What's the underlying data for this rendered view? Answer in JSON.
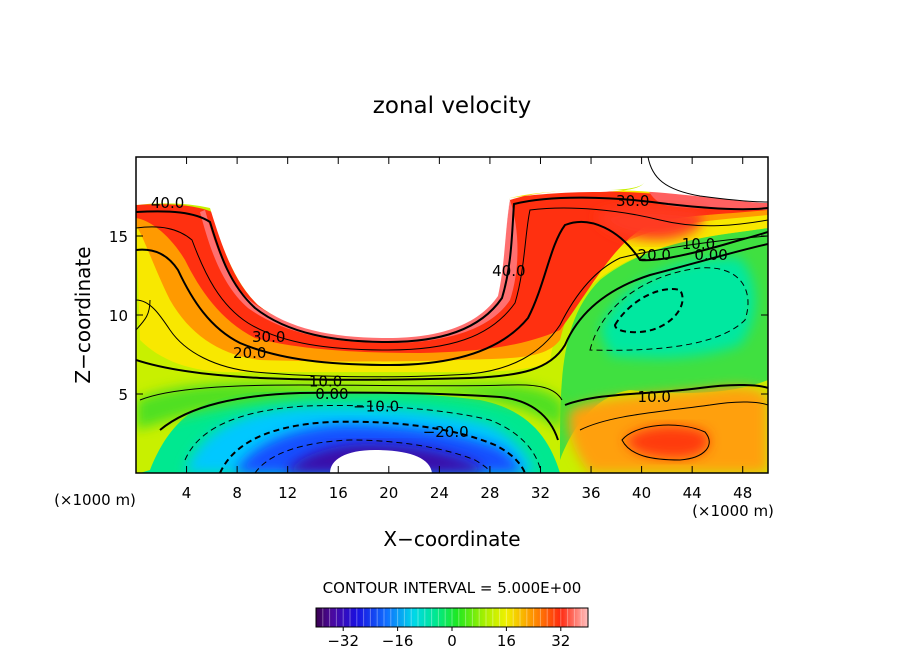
{
  "chart_data": {
    "type": "heatmap",
    "title": "zonal velocity",
    "xlabel": "X−coordinate",
    "ylabel": "Z−coordinate",
    "x_unit_left": "(×1000 m)",
    "x_unit_right": "(×1000 m)",
    "xlim": [
      0,
      50
    ],
    "ylim": [
      0,
      20
    ],
    "x_ticks": [
      4,
      8,
      12,
      16,
      20,
      24,
      28,
      32,
      36,
      40,
      44,
      48
    ],
    "y_ticks": [
      5,
      10,
      15
    ],
    "contour_interval_text": "CONTOUR INTERVAL = 5.000E+00",
    "colorbar": {
      "range": [
        -40,
        40
      ],
      "ticks": [
        -32,
        -16,
        0,
        16,
        32
      ],
      "tick_labels": [
        "−32",
        "−16",
        "0",
        "16",
        "32"
      ]
    },
    "contour_labels": [
      {
        "text": "40.0",
        "x": 2.5,
        "z": 17.1
      },
      {
        "text": "30.0",
        "x": 39.3,
        "z": 17.2
      },
      {
        "text": "40.0",
        "x": 29.5,
        "z": 12.8
      },
      {
        "text": "20.0",
        "x": 41.0,
        "z": 13.8
      },
      {
        "text": "10.0",
        "x": 44.5,
        "z": 14.5
      },
      {
        "text": "0.00",
        "x": 45.5,
        "z": 13.8
      },
      {
        "text": "30.0",
        "x": 10.5,
        "z": 8.6
      },
      {
        "text": "20.0",
        "x": 9.0,
        "z": 7.6
      },
      {
        "text": "10.0",
        "x": 15.0,
        "z": 5.8
      },
      {
        "text": "0.00",
        "x": 15.5,
        "z": 5.0
      },
      {
        "text": "−10.0",
        "x": 19.0,
        "z": 4.2
      },
      {
        "text": "−20.0",
        "x": 24.5,
        "z": 2.6
      },
      {
        "text": "10.0",
        "x": 41.0,
        "z": 4.8
      }
    ],
    "field_features": [
      {
        "kind": "dome",
        "description": "elevated jet core around top boundary",
        "x_range": [
          2,
          31
        ],
        "z_bottom": 8.5,
        "value": 40
      },
      {
        "kind": "pool",
        "description": "negative velocity pool near bottom",
        "center_x": 18.5,
        "center_z": 0.8,
        "min_value": -40
      },
      {
        "kind": "core",
        "description": "positive core east side",
        "center_x": 41,
        "center_z": 2.3,
        "value": 25
      },
      {
        "kind": "trough",
        "description": "weak flow region",
        "center_x": 43,
        "center_z": 10.5,
        "value": -5
      }
    ]
  }
}
